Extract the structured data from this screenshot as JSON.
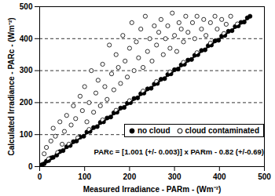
{
  "chart_data": {
    "type": "scatter",
    "x_label": "Measured Irradiance - PARm - (Wm⁻²)",
    "y_label": "Calculated Irradiance - PARc - (Wm⁻²)",
    "xlim": [
      0,
      500
    ],
    "xticks": [
      0,
      100,
      200,
      300,
      400,
      500
    ],
    "ylim": [
      0,
      500
    ],
    "yticks": [
      0,
      100,
      200,
      300,
      400,
      500
    ],
    "grid": true,
    "legend": "lower right",
    "annotations": [
      {
        "text": "PARc = [1.001 (+/- 0.003)] x PARm - 0.82 (+/-0.69)"
      }
    ],
    "series": [
      {
        "name": "no cloud",
        "type": "scatter",
        "marker": "filled circle",
        "color": "#000000",
        "x": [
          5,
          10,
          15,
          20,
          25,
          30,
          38,
          45,
          52,
          60,
          68,
          75,
          82,
          90,
          98,
          105,
          112,
          120,
          128,
          135,
          142,
          150,
          158,
          165,
          172,
          180,
          188,
          195,
          202,
          210,
          218,
          225,
          232,
          240,
          248,
          255,
          262,
          270,
          278,
          285,
          292,
          300,
          308,
          315,
          322,
          330,
          338,
          345,
          352,
          360,
          368,
          375,
          382,
          390,
          398,
          405,
          412,
          420,
          428,
          435,
          442,
          448,
          455,
          462,
          468
        ],
        "values": [
          6,
          9,
          17,
          19,
          27,
          29,
          36,
          47,
          50,
          62,
          66,
          78,
          80,
          92,
          95,
          108,
          110,
          122,
          125,
          138,
          140,
          152,
          155,
          168,
          170,
          183,
          185,
          198,
          200,
          213,
          215,
          228,
          230,
          243,
          245,
          258,
          260,
          273,
          275,
          288,
          290,
          303,
          305,
          318,
          320,
          333,
          335,
          348,
          350,
          363,
          365,
          378,
          380,
          393,
          395,
          408,
          410,
          423,
          425,
          438,
          440,
          451,
          452,
          465,
          470
        ]
      },
      {
        "name": "cloud contaminated",
        "type": "scatter",
        "marker": "open circle",
        "color": "#000000",
        "x": [
          20,
          40,
          65,
          85,
          110,
          140,
          170,
          200,
          230,
          260,
          290,
          320,
          350,
          380,
          410,
          440,
          10,
          15,
          25,
          30,
          35,
          45,
          50,
          55,
          60,
          70,
          75,
          80,
          90,
          95,
          100,
          105,
          110,
          115,
          120,
          125,
          130,
          135,
          140,
          145,
          150,
          155,
          160,
          165,
          170,
          175,
          180,
          185,
          190,
          195,
          200,
          205,
          210,
          215,
          220,
          225,
          230,
          235,
          240,
          245,
          250,
          255,
          260,
          265,
          270,
          275,
          280,
          285,
          290,
          295,
          300,
          305,
          310,
          315,
          320,
          325,
          330,
          340,
          345,
          350,
          360,
          365,
          370,
          380,
          390,
          395,
          405,
          415,
          425
        ],
        "values": [
          24,
          44,
          70,
          90,
          116,
          146,
          176,
          206,
          236,
          266,
          296,
          326,
          356,
          386,
          416,
          446,
          40,
          60,
          80,
          120,
          95,
          140,
          70,
          110,
          160,
          130,
          190,
          150,
          220,
          175,
          250,
          140,
          200,
          300,
          170,
          230,
          270,
          190,
          320,
          250,
          210,
          380,
          290,
          240,
          350,
          310,
          260,
          410,
          330,
          280,
          370,
          450,
          300,
          390,
          340,
          430,
          310,
          470,
          360,
          400,
          330,
          440,
          380,
          420,
          460,
          350,
          400,
          440,
          370,
          480,
          410,
          360,
          450,
          430,
          390,
          470,
          420,
          450,
          400,
          470,
          430,
          460,
          410,
          450,
          470,
          430,
          460,
          445,
          470
        ]
      },
      {
        "type": "line",
        "line_style": "solid",
        "color": "#000000",
        "x": [
          15,
          460
        ],
        "values": [
          14.2,
          459.6
        ]
      }
    ]
  }
}
